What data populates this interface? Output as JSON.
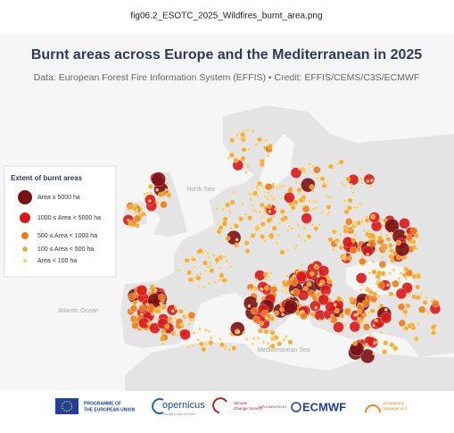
{
  "header": {
    "filename": "fig06.2_ESOTC_2025_Wildfires_burnt_area.png"
  },
  "figure": {
    "title": "Burnt areas across Europe and the Mediterranean in 2025",
    "subtitle": "Data: European Forest Fire Information System (EFFIS) • Credit: EFFIS/CEMS/C3S/ECMWF"
  },
  "legend": {
    "title": "Extent of burnt areas",
    "items": [
      "Area ≥ 5000 ha",
      "1000 ≤ Area < 5000 ha",
      "500 ≤ Area < 1000 ha",
      "100 ≤ Area < 500 ha",
      "Area < 100 ha"
    ]
  },
  "map_labels": {
    "north_sea": "North Sea",
    "atlantic": "Atlantic Ocean",
    "mediterranean": "Mediterranean Sea"
  },
  "logos": {
    "eu": [
      "PROGRAMME OF",
      "THE EUROPEAN UNION"
    ],
    "copernicus": "opernicus",
    "copernicus_sub": "Europe's eyes on Earth",
    "c3s": [
      "Climate",
      "Change Service"
    ],
    "implemented": "IMPLEMENTED BY",
    "ecmwf": "ECMWF",
    "cems": [
      "Emergency",
      "Management"
    ]
  }
}
